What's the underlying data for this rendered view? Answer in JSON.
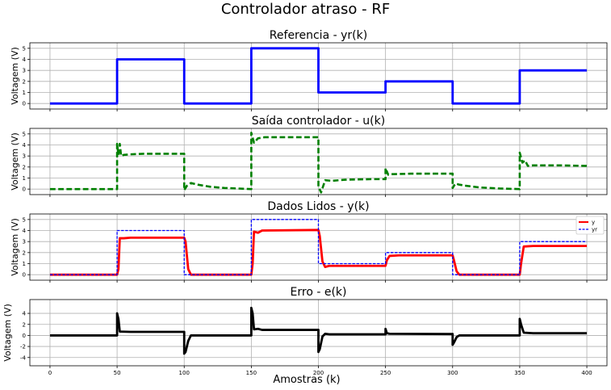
{
  "figure_title": "Controlador atraso - RF",
  "xlabel": "Amostras (k)",
  "chart_data": [
    {
      "type": "line",
      "title": "Referencia - yr(k)",
      "ylabel": "Voltagem (V)",
      "xlim": [
        -15,
        415
      ],
      "ylim": [
        -0.5,
        5.5
      ],
      "yticks": [
        0,
        1,
        2,
        3,
        4,
        5
      ],
      "xticks": [
        0,
        50,
        100,
        150,
        200,
        250,
        300,
        350,
        400
      ],
      "show_xticklabels": false,
      "grid": true,
      "legend": null,
      "series": [
        {
          "color": "#0000ff",
          "dash": "solid",
          "width": 2.8,
          "points": [
            [
              0,
              0
            ],
            [
              50,
              0
            ],
            [
              50,
              4
            ],
            [
              100,
              4
            ],
            [
              100,
              0
            ],
            [
              150,
              0
            ],
            [
              150,
              5
            ],
            [
              200,
              5
            ],
            [
              200,
              1
            ],
            [
              250,
              1
            ],
            [
              250,
              2
            ],
            [
              300,
              2
            ],
            [
              300,
              0
            ],
            [
              350,
              0
            ],
            [
              350,
              3
            ],
            [
              400,
              3
            ]
          ]
        }
      ]
    },
    {
      "type": "line",
      "title": "Saída controlador - u(k)",
      "ylabel": "Voltagem (V)",
      "xlim": [
        -15,
        415
      ],
      "ylim": [
        -0.5,
        5.5
      ],
      "yticks": [
        0,
        1,
        2,
        3,
        4,
        5
      ],
      "xticks": [
        0,
        50,
        100,
        150,
        200,
        250,
        300,
        350,
        400
      ],
      "show_xticklabels": false,
      "grid": true,
      "legend": null,
      "series": [
        {
          "color": "#008000",
          "dash": "dashed",
          "width": 2.6,
          "points": [
            [
              0,
              0
            ],
            [
              50,
              0
            ],
            [
              50,
              4.1
            ],
            [
              51,
              3.1
            ],
            [
              52,
              4.1
            ],
            [
              53,
              3.0
            ],
            [
              55,
              3.1
            ],
            [
              60,
              3.15
            ],
            [
              70,
              3.2
            ],
            [
              100,
              3.2
            ],
            [
              100,
              -0.1
            ],
            [
              102,
              0.3
            ],
            [
              105,
              0.55
            ],
            [
              110,
              0.4
            ],
            [
              120,
              0.2
            ],
            [
              130,
              0.1
            ],
            [
              140,
              0.05
            ],
            [
              150,
              0
            ],
            [
              150,
              5.1
            ],
            [
              152,
              4.2
            ],
            [
              155,
              4.6
            ],
            [
              160,
              4.7
            ],
            [
              200,
              4.7
            ],
            [
              200,
              0.2
            ],
            [
              202,
              -0.3
            ],
            [
              205,
              0.8
            ],
            [
              210,
              0.75
            ],
            [
              220,
              0.85
            ],
            [
              240,
              0.9
            ],
            [
              250,
              0.9
            ],
            [
              250,
              1.9
            ],
            [
              252,
              1.3
            ],
            [
              255,
              1.35
            ],
            [
              270,
              1.4
            ],
            [
              300,
              1.4
            ],
            [
              300,
              0.1
            ],
            [
              302,
              0.5
            ],
            [
              305,
              0.4
            ],
            [
              310,
              0.3
            ],
            [
              320,
              0.15
            ],
            [
              335,
              0.05
            ],
            [
              350,
              0
            ],
            [
              350,
              3.3
            ],
            [
              352,
              2.4
            ],
            [
              354,
              2.6
            ],
            [
              356,
              2.1
            ],
            [
              360,
              2.15
            ],
            [
              380,
              2.15
            ],
            [
              400,
              2.1
            ]
          ]
        }
      ]
    },
    {
      "type": "line",
      "title": "Dados Lidos - y(k)",
      "ylabel": "Voltagem (V)",
      "xlim": [
        -15,
        415
      ],
      "ylim": [
        -0.5,
        5.5
      ],
      "yticks": [
        0,
        1,
        2,
        3,
        4,
        5
      ],
      "xticks": [
        0,
        50,
        100,
        150,
        200,
        250,
        300,
        350,
        400
      ],
      "show_xticklabels": false,
      "grid": true,
      "legend": {
        "position": "top-right",
        "entries": [
          "y",
          "yr"
        ]
      },
      "series": [
        {
          "name": "y",
          "color": "#ff0000",
          "dash": "solid",
          "width": 2.8,
          "points": [
            [
              0,
              0
            ],
            [
              50,
              0
            ],
            [
              51,
              0.5
            ],
            [
              52,
              3.3
            ],
            [
              55,
              3.3
            ],
            [
              60,
              3.35
            ],
            [
              100,
              3.35
            ],
            [
              101,
              3.0
            ],
            [
              103,
              0.5
            ],
            [
              105,
              0
            ],
            [
              150,
              0
            ],
            [
              151,
              1.0
            ],
            [
              152,
              3.9
            ],
            [
              155,
              3.8
            ],
            [
              158,
              4.0
            ],
            [
              200,
              4.05
            ],
            [
              201,
              3.5
            ],
            [
              203,
              1.2
            ],
            [
              205,
              0.7
            ],
            [
              208,
              0.8
            ],
            [
              250,
              0.8
            ],
            [
              251,
              1.3
            ],
            [
              253,
              1.7
            ],
            [
              260,
              1.75
            ],
            [
              300,
              1.75
            ],
            [
              301,
              1.3
            ],
            [
              303,
              0.3
            ],
            [
              305,
              0
            ],
            [
              350,
              0
            ],
            [
              351,
              1.0
            ],
            [
              353,
              2.55
            ],
            [
              360,
              2.6
            ],
            [
              400,
              2.6
            ]
          ]
        },
        {
          "name": "yr",
          "color": "#0000ff",
          "dash": "dashed",
          "width": 1.3,
          "points": [
            [
              0,
              0
            ],
            [
              50,
              0
            ],
            [
              50,
              4
            ],
            [
              100,
              4
            ],
            [
              100,
              0
            ],
            [
              150,
              0
            ],
            [
              150,
              5
            ],
            [
              200,
              5
            ],
            [
              200,
              1
            ],
            [
              250,
              1
            ],
            [
              250,
              2
            ],
            [
              300,
              2
            ],
            [
              300,
              0
            ],
            [
              350,
              0
            ],
            [
              350,
              3
            ],
            [
              400,
              3
            ]
          ]
        }
      ]
    },
    {
      "type": "line",
      "title": "Erro - e(k)",
      "ylabel": "Voltagem (V)",
      "xlim": [
        -15,
        415
      ],
      "ylim": [
        -5.5,
        6.5
      ],
      "yticks": [
        -4,
        -2,
        0,
        2,
        4
      ],
      "xticks": [
        0,
        50,
        100,
        150,
        200,
        250,
        300,
        350,
        400
      ],
      "show_xticklabels": true,
      "grid": true,
      "legend": null,
      "series": [
        {
          "color": "#000000",
          "dash": "solid",
          "width": 2.8,
          "points": [
            [
              0,
              0
            ],
            [
              50,
              0
            ],
            [
              50,
              4
            ],
            [
              51,
              3.0
            ],
            [
              52,
              0.7
            ],
            [
              60,
              0.65
            ],
            [
              100,
              0.65
            ],
            [
              100,
              -3.3
            ],
            [
              101,
              -3.0
            ],
            [
              103,
              -1.0
            ],
            [
              105,
              0
            ],
            [
              150,
              0
            ],
            [
              150,
              5.0
            ],
            [
              151,
              4.0
            ],
            [
              152,
              1.1
            ],
            [
              155,
              1.2
            ],
            [
              158,
              1.0
            ],
            [
              200,
              1.0
            ],
            [
              200,
              -3.0
            ],
            [
              201,
              -2.5
            ],
            [
              203,
              -0.2
            ],
            [
              205,
              0.3
            ],
            [
              208,
              0.2
            ],
            [
              250,
              0.2
            ],
            [
              250,
              1.2
            ],
            [
              251,
              0.4
            ],
            [
              253,
              0.3
            ],
            [
              300,
              0.25
            ],
            [
              300,
              -1.7
            ],
            [
              301,
              -1.3
            ],
            [
              303,
              -0.3
            ],
            [
              305,
              0
            ],
            [
              350,
              0
            ],
            [
              350,
              3.0
            ],
            [
              351,
              2.0
            ],
            [
              353,
              0.5
            ],
            [
              360,
              0.4
            ],
            [
              400,
              0.4
            ]
          ]
        }
      ]
    }
  ]
}
